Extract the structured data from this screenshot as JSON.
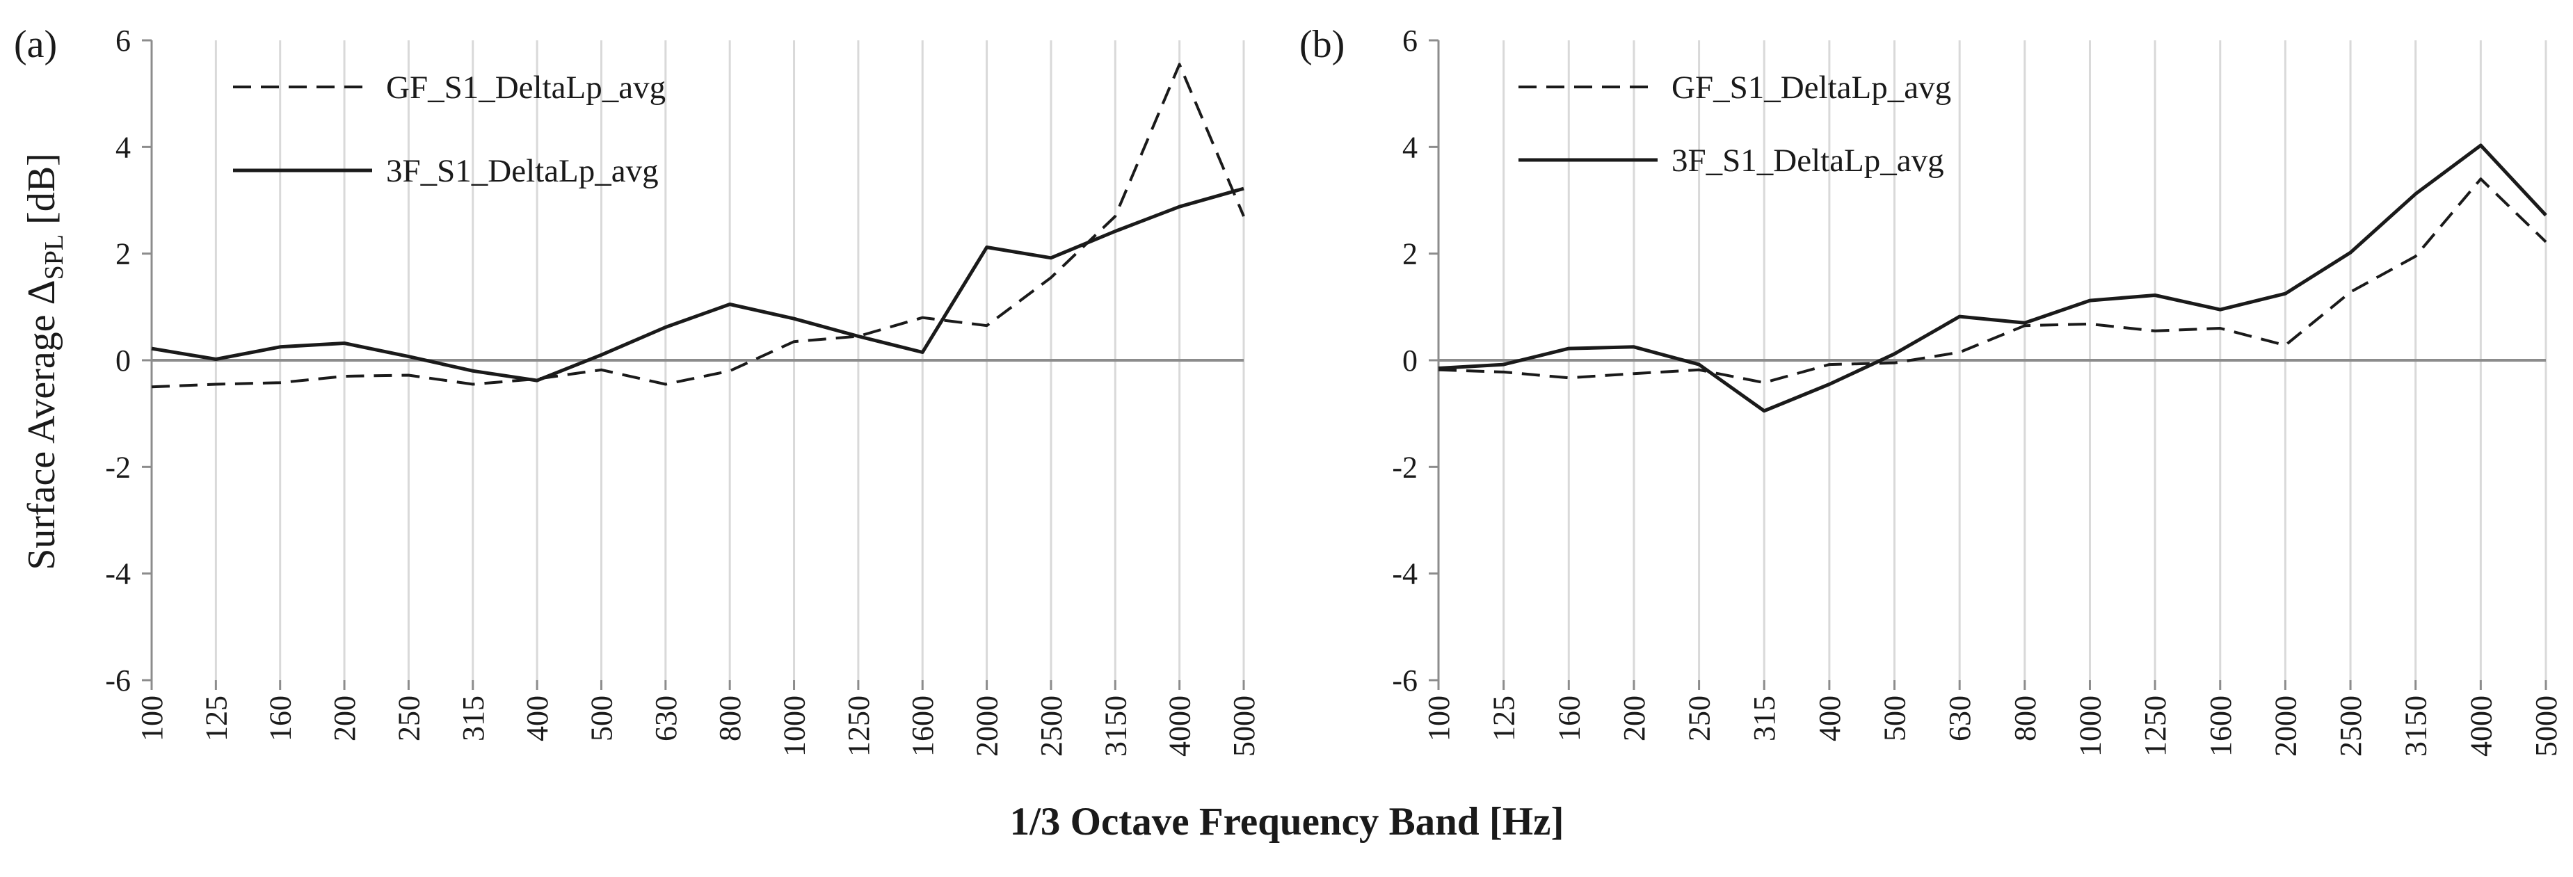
{
  "ylabel_pre": "Surface Average Δ",
  "ylabel_sub": "SPL",
  "ylabel_post": " [dB]",
  "xlabel": "1/3 Octave Frequency Band [Hz]",
  "chart_data": [
    {
      "type": "line",
      "panel_label": "(a)",
      "categories": [
        "100",
        "125",
        "160",
        "200",
        "250",
        "315",
        "400",
        "500",
        "630",
        "800",
        "1000",
        "1250",
        "1600",
        "2000",
        "2500",
        "3150",
        "4000",
        "5000"
      ],
      "ylim": [
        -6,
        6
      ],
      "yticks": [
        -6,
        -4,
        -2,
        0,
        2,
        4,
        6
      ],
      "grid": "vertical",
      "legend_position": "top-left",
      "series": [
        {
          "name": "GF_S1_DeltaLp_avg",
          "style": "dashed",
          "color": "#1a1a1a",
          "values": [
            -0.5,
            -0.45,
            -0.42,
            -0.3,
            -0.28,
            -0.45,
            -0.35,
            -0.18,
            -0.45,
            -0.2,
            0.35,
            0.45,
            0.8,
            0.65,
            1.55,
            2.7,
            5.55,
            2.7
          ]
        },
        {
          "name": "3F_S1_DeltaLp_avg",
          "style": "solid",
          "color": "#1a1a1a",
          "values": [
            0.22,
            0.02,
            0.25,
            0.32,
            0.07,
            -0.2,
            -0.38,
            0.1,
            0.62,
            1.05,
            0.78,
            0.45,
            0.15,
            2.12,
            1.92,
            2.42,
            2.88,
            3.22
          ]
        }
      ]
    },
    {
      "type": "line",
      "panel_label": "(b)",
      "categories": [
        "100",
        "125",
        "160",
        "200",
        "250",
        "315",
        "400",
        "500",
        "630",
        "800",
        "1000",
        "1250",
        "1600",
        "2000",
        "2500",
        "3150",
        "4000",
        "5000"
      ],
      "ylim": [
        -6,
        6
      ],
      "yticks": [
        -6,
        -4,
        -2,
        0,
        2,
        4,
        6
      ],
      "grid": "vertical",
      "legend_position": "top-left",
      "series": [
        {
          "name": "GF_S1_DeltaLp_avg",
          "style": "dashed",
          "color": "#1a1a1a",
          "values": [
            -0.18,
            -0.22,
            -0.33,
            -0.25,
            -0.18,
            -0.42,
            -0.08,
            -0.05,
            0.15,
            0.65,
            0.68,
            0.55,
            0.6,
            0.28,
            1.28,
            1.95,
            3.4,
            2.22
          ]
        },
        {
          "name": "3F_S1_DeltaLp_avg",
          "style": "solid",
          "color": "#1a1a1a",
          "values": [
            -0.15,
            -0.08,
            0.22,
            0.25,
            -0.08,
            -0.95,
            -0.45,
            0.12,
            0.82,
            0.7,
            1.12,
            1.22,
            0.95,
            1.25,
            2.02,
            3.12,
            4.03,
            2.72
          ]
        }
      ]
    }
  ]
}
